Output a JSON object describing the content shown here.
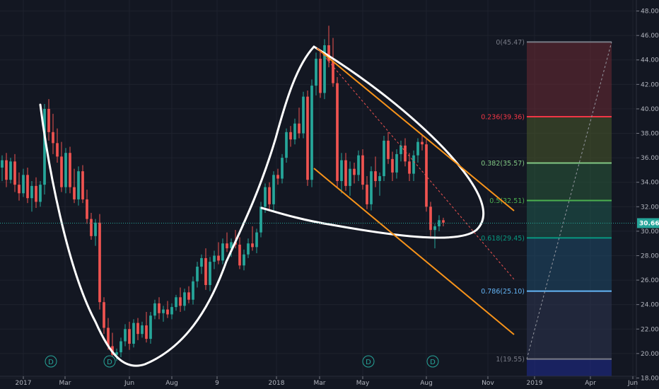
{
  "colors": {
    "background": "#131722",
    "grid": "#1e222d",
    "up": "#26a69a",
    "down": "#ef5350",
    "curve": "#ffffff",
    "channel": "#f7931a",
    "price_line": "#26a69a"
  },
  "chart_data": {
    "type": "candlestick",
    "y_axis": {
      "side": "right",
      "ticks": [
        "48.00",
        "46.00",
        "44.00",
        "42.00",
        "40.00",
        "38.00",
        "36.00",
        "34.00",
        "32.00",
        "30.00",
        "28.00",
        "26.00",
        "24.00",
        "22.00",
        "20.00",
        "18.00"
      ],
      "ylim": [
        17.1,
        48.9
      ]
    },
    "x_axis": {
      "ticks": [
        "2017",
        "Mar",
        "Jun",
        "Aug",
        "9",
        "2018",
        "Mar",
        "May",
        "Aug",
        "Nov",
        "2019",
        "Apr",
        "Jun"
      ]
    },
    "last_price": {
      "value": 30.66,
      "label": "30.66"
    },
    "fibonacci": {
      "levels": [
        {
          "ratio": "0",
          "price": 45.47,
          "label": "0(45.47)",
          "color": "#787b86"
        },
        {
          "ratio": "0.236",
          "price": 39.36,
          "label": "0.236(39.36)",
          "color": "#f23645"
        },
        {
          "ratio": "0.382",
          "price": 35.57,
          "label": "0.382(35.57)",
          "color": "#81c784"
        },
        {
          "ratio": "0.5",
          "price": 32.51,
          "label": "0.5(32.51)",
          "color": "#4caf50"
        },
        {
          "ratio": "0.618",
          "price": 29.45,
          "label": "0.618(29.45)",
          "color": "#089981"
        },
        {
          "ratio": "0.786",
          "price": 25.1,
          "label": "0.786(25.10)",
          "color": "#64b5f6"
        },
        {
          "ratio": "1",
          "price": 19.55,
          "label": "1(19.55)",
          "color": "#787b86"
        }
      ]
    },
    "event_markers": [
      "D",
      "D",
      "D",
      "D"
    ],
    "candles": [
      [
        35.2,
        36.2,
        34.1,
        35.8
      ],
      [
        35.8,
        36.4,
        33.6,
        34.2
      ],
      [
        34.2,
        36.0,
        33.9,
        35.7
      ],
      [
        35.7,
        36.3,
        33.2,
        33.8
      ],
      [
        33.8,
        34.8,
        32.5,
        33.1
      ],
      [
        33.1,
        35.1,
        32.8,
        34.6
      ],
      [
        34.6,
        35.2,
        32.3,
        32.7
      ],
      [
        32.7,
        34.1,
        31.6,
        33.7
      ],
      [
        33.7,
        34.4,
        31.9,
        32.4
      ],
      [
        32.4,
        34.1,
        32.0,
        33.8
      ],
      [
        33.8,
        40.4,
        33.0,
        40.0
      ],
      [
        40.0,
        40.8,
        37.4,
        38.1
      ],
      [
        38.1,
        39.6,
        36.3,
        37.2
      ],
      [
        37.2,
        38.4,
        35.6,
        36.1
      ],
      [
        36.1,
        37.3,
        33.2,
        33.6
      ],
      [
        33.6,
        36.8,
        33.1,
        36.4
      ],
      [
        36.4,
        36.9,
        33.1,
        33.6
      ],
      [
        33.6,
        35.1,
        32.3,
        32.6
      ],
      [
        32.6,
        35.3,
        32.1,
        34.9
      ],
      [
        34.9,
        35.4,
        32.3,
        32.6
      ],
      [
        32.6,
        33.4,
        30.6,
        31.0
      ],
      [
        31.0,
        31.5,
        29.3,
        29.6
      ],
      [
        29.6,
        31.0,
        28.8,
        30.7
      ],
      [
        30.7,
        31.4,
        23.6,
        24.2
      ],
      [
        24.2,
        24.6,
        21.6,
        22.1
      ],
      [
        22.1,
        22.9,
        20.3,
        20.6
      ],
      [
        20.6,
        21.7,
        19.6,
        19.9
      ],
      [
        19.9,
        20.4,
        19.4,
        20.1
      ],
      [
        20.1,
        21.3,
        19.7,
        21.0
      ],
      [
        21.0,
        22.4,
        20.6,
        22.0
      ],
      [
        22.0,
        22.6,
        20.3,
        20.8
      ],
      [
        20.8,
        22.8,
        20.5,
        22.5
      ],
      [
        22.5,
        22.9,
        21.1,
        21.6
      ],
      [
        21.6,
        22.6,
        21.3,
        22.3
      ],
      [
        22.3,
        23.4,
        20.9,
        21.2
      ],
      [
        21.2,
        23.4,
        20.8,
        23.1
      ],
      [
        23.1,
        24.4,
        22.8,
        24.1
      ],
      [
        24.1,
        24.6,
        22.8,
        23.3
      ],
      [
        23.3,
        23.9,
        22.6,
        23.6
      ],
      [
        23.6,
        24.3,
        22.9,
        23.2
      ],
      [
        23.2,
        24.1,
        22.8,
        23.8
      ],
      [
        23.8,
        24.8,
        23.5,
        24.6
      ],
      [
        24.6,
        25.4,
        23.4,
        23.9
      ],
      [
        23.9,
        25.3,
        23.5,
        25.0
      ],
      [
        25.0,
        25.5,
        24.1,
        24.4
      ],
      [
        24.4,
        26.3,
        24.0,
        25.9
      ],
      [
        25.9,
        27.5,
        25.4,
        27.1
      ],
      [
        27.1,
        28.1,
        26.5,
        27.8
      ],
      [
        27.8,
        28.6,
        25.2,
        25.6
      ],
      [
        25.6,
        27.9,
        25.1,
        27.5
      ],
      [
        27.5,
        28.4,
        26.9,
        28.0
      ],
      [
        28.0,
        29.1,
        27.3,
        27.6
      ],
      [
        27.6,
        29.4,
        27.3,
        29.0
      ],
      [
        29.0,
        29.9,
        28.3,
        28.6
      ],
      [
        28.6,
        29.4,
        27.9,
        29.1
      ],
      [
        29.1,
        30.1,
        28.6,
        28.9
      ],
      [
        28.9,
        29.5,
        26.9,
        27.2
      ],
      [
        27.2,
        28.5,
        26.8,
        28.1
      ],
      [
        28.1,
        29.4,
        27.8,
        29.0
      ],
      [
        29.0,
        30.4,
        28.4,
        28.7
      ],
      [
        28.7,
        30.2,
        28.2,
        29.9
      ],
      [
        29.9,
        32.4,
        29.5,
        32.0
      ],
      [
        32.0,
        33.9,
        31.5,
        33.6
      ],
      [
        33.6,
        34.0,
        31.8,
        32.2
      ],
      [
        32.2,
        34.9,
        31.7,
        34.6
      ],
      [
        34.6,
        35.1,
        33.8,
        34.3
      ],
      [
        34.3,
        36.3,
        33.9,
        36.0
      ],
      [
        36.0,
        38.4,
        35.6,
        38.1
      ],
      [
        38.1,
        38.6,
        36.9,
        37.5
      ],
      [
        37.5,
        39.2,
        37.1,
        38.8
      ],
      [
        38.8,
        40.1,
        37.6,
        38.0
      ],
      [
        38.0,
        41.4,
        37.6,
        41.0
      ],
      [
        41.0,
        41.5,
        33.7,
        34.2
      ],
      [
        34.2,
        42.4,
        33.6,
        41.9
      ],
      [
        41.9,
        44.6,
        41.1,
        44.1
      ],
      [
        44.1,
        44.8,
        40.9,
        41.3
      ],
      [
        41.3,
        45.7,
        40.8,
        45.2
      ],
      [
        45.2,
        46.8,
        43.4,
        43.9
      ],
      [
        43.9,
        45.8,
        41.8,
        42.1
      ],
      [
        42.1,
        42.6,
        33.6,
        34.1
      ],
      [
        34.1,
        36.4,
        33.1,
        35.8
      ],
      [
        35.8,
        36.4,
        33.3,
        33.7
      ],
      [
        33.7,
        35.7,
        32.9,
        35.1
      ],
      [
        35.1,
        35.6,
        33.9,
        34.6
      ],
      [
        34.6,
        36.6,
        34.1,
        36.2
      ],
      [
        36.2,
        36.7,
        33.4,
        33.8
      ],
      [
        33.8,
        34.5,
        31.8,
        32.2
      ],
      [
        32.2,
        35.3,
        31.7,
        34.9
      ],
      [
        34.9,
        36.1,
        33.6,
        34.1
      ],
      [
        34.1,
        34.8,
        32.9,
        34.5
      ],
      [
        34.5,
        37.8,
        34.1,
        37.4
      ],
      [
        37.4,
        38.1,
        35.5,
        35.9
      ],
      [
        35.9,
        36.5,
        34.1,
        34.8
      ],
      [
        34.8,
        36.7,
        34.3,
        36.3
      ],
      [
        36.3,
        37.4,
        35.7,
        37.0
      ],
      [
        37.0,
        37.6,
        35.3,
        35.7
      ],
      [
        35.7,
        36.4,
        34.1,
        34.7
      ],
      [
        34.7,
        36.6,
        34.1,
        36.2
      ],
      [
        36.2,
        37.6,
        35.6,
        37.3
      ],
      [
        37.3,
        37.9,
        36.6,
        37.1
      ],
      [
        37.1,
        37.5,
        31.6,
        32.0
      ],
      [
        32.0,
        32.4,
        29.6,
        30.1
      ],
      [
        30.1,
        30.6,
        28.6,
        30.4
      ],
      [
        30.4,
        31.3,
        30.0,
        30.9
      ],
      [
        30.9,
        31.1,
        30.4,
        30.7
      ]
    ]
  }
}
